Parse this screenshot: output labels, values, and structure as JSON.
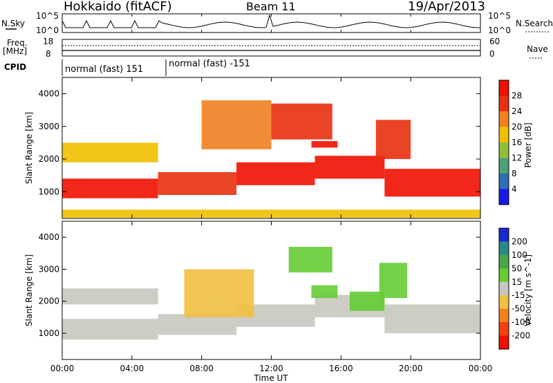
{
  "header": {
    "station": "Hokkaido (fitACF)",
    "beam": "Beam 11",
    "date": "19/Apr/2013"
  },
  "strip_labels": {
    "nsky": "N.Sky",
    "freq_top": "Freq.",
    "freq_unit": "[MHz]",
    "cpid": "CPID",
    "nsearch": "N.Search",
    "nave": "Nave"
  },
  "strip_ticks": {
    "nsky_top": "10^5",
    "nsky_bottom": "10^0",
    "freq_top": "18",
    "freq_bottom": "8",
    "nave_top": "60",
    "nave_bottom": "0"
  },
  "cpid_modes": [
    "normal (fast) 151",
    "normal (fast) -151"
  ],
  "chart_data": [
    {
      "type": "heatmap",
      "title": "",
      "xlabel": "Time UT",
      "ylabel": "Slant Range [km]",
      "x_ticks": [
        "00:00",
        "04:00",
        "08:00",
        "12:00",
        "16:00",
        "20:00",
        "00:00"
      ],
      "y_ticks": [
        "1000",
        "2000",
        "3000",
        "4000"
      ],
      "ylim": [
        180,
        4500
      ],
      "colorbar_label": "Power [dB]",
      "colorbar_ticks": [
        "4",
        "8",
        "12",
        "16",
        "20",
        "24",
        "28"
      ],
      "colorbar_colors": [
        "#1a1ae6",
        "#2a6fb8",
        "#4f9f78",
        "#8fbf3a",
        "#f0c000",
        "#f08020",
        "#e83010",
        "#f01000"
      ],
      "regions": [
        {
          "t_start": 0.0,
          "t_end": 5.5,
          "range_low": 800,
          "range_high": 1400,
          "level": 28
        },
        {
          "t_start": 5.5,
          "t_end": 10.0,
          "range_low": 900,
          "range_high": 1600,
          "level": 24
        },
        {
          "t_start": 10.0,
          "t_end": 14.5,
          "range_low": 1200,
          "range_high": 1900,
          "level": 28
        },
        {
          "t_start": 14.5,
          "t_end": 18.5,
          "range_low": 1400,
          "range_high": 2100,
          "level": 28
        },
        {
          "t_start": 18.5,
          "t_end": 24.0,
          "range_low": 850,
          "range_high": 1700,
          "level": 28
        },
        {
          "t_start": 0.0,
          "t_end": 5.5,
          "range_low": 1900,
          "range_high": 2500,
          "level": 14
        },
        {
          "t_start": 8.0,
          "t_end": 12.0,
          "range_low": 2300,
          "range_high": 3800,
          "level": 20
        },
        {
          "t_start": 12.0,
          "t_end": 15.5,
          "range_low": 2600,
          "range_high": 3700,
          "level": 22
        },
        {
          "t_start": 14.3,
          "t_end": 15.8,
          "range_low": 2350,
          "range_high": 2550,
          "level": 28
        },
        {
          "t_start": 18.0,
          "t_end": 20.0,
          "range_low": 2000,
          "range_high": 3200,
          "level": 22
        },
        {
          "t_start": 0.0,
          "t_end": 24.0,
          "range_low": 200,
          "range_high": 450,
          "level": 14
        }
      ]
    },
    {
      "type": "heatmap",
      "title": "",
      "xlabel": "Time UT",
      "ylabel": "Slant Range [km]",
      "x_ticks": [
        "00:00",
        "04:00",
        "08:00",
        "12:00",
        "16:00",
        "20:00",
        "00:00"
      ],
      "y_ticks": [
        "1000",
        "2000",
        "3000",
        "4000"
      ],
      "ylim": [
        180,
        4500
      ],
      "colorbar_label": "Velocity [m s^-1]",
      "colorbar_ticks": [
        "200",
        "100",
        "50",
        "15",
        "-15",
        "-50",
        "-100",
        "-200"
      ],
      "colorbar_colors": [
        "#1a2ad0",
        "#2a8a8a",
        "#48a848",
        "#66cc33",
        "#c8c8c0",
        "#f0c040",
        "#f08020",
        "#f04010",
        "#f01000"
      ],
      "regions": [
        {
          "t_start": 0.0,
          "t_end": 5.5,
          "range_low": 800,
          "range_high": 1450,
          "velocity": 0
        },
        {
          "t_start": 5.5,
          "t_end": 10.0,
          "range_low": 950,
          "range_high": 1600,
          "velocity": 0
        },
        {
          "t_start": 10.0,
          "t_end": 14.5,
          "range_low": 1200,
          "range_high": 1900,
          "velocity": 0
        },
        {
          "t_start": 14.5,
          "t_end": 18.5,
          "range_low": 1500,
          "range_high": 2200,
          "velocity": 0
        },
        {
          "t_start": 18.5,
          "t_end": 24.0,
          "range_low": 1000,
          "range_high": 1900,
          "velocity": 0
        },
        {
          "t_start": 0.0,
          "t_end": 5.5,
          "range_low": 1900,
          "range_high": 2400,
          "velocity": 0
        },
        {
          "t_start": 13.0,
          "t_end": 15.5,
          "range_low": 2900,
          "range_high": 3700,
          "velocity": 50
        },
        {
          "t_start": 14.3,
          "t_end": 15.8,
          "range_low": 2100,
          "range_high": 2500,
          "velocity": 50
        },
        {
          "t_start": 16.5,
          "t_end": 18.5,
          "range_low": 1700,
          "range_high": 2300,
          "velocity": 50
        },
        {
          "t_start": 18.2,
          "t_end": 19.8,
          "range_low": 2100,
          "range_high": 3200,
          "velocity": 50
        },
        {
          "t_start": 7.0,
          "t_end": 11.0,
          "range_low": 1500,
          "range_high": 3000,
          "velocity": -50
        }
      ]
    }
  ]
}
